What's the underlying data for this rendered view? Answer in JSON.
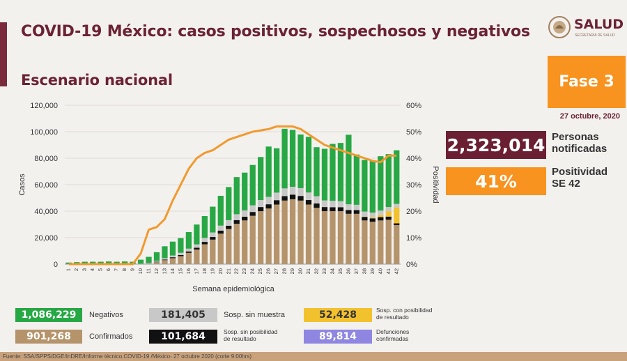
{
  "header": {
    "title": "COVID-19 México: casos positivos, sospechosos y negativos",
    "subtitle": "Escenario nacional",
    "logo_text": "SALUD",
    "logo_sub": "SECRETARÍA DE SALUD",
    "phase": "Fase 3",
    "date": "27 octubre, 2020"
  },
  "stats": {
    "notified_value": "2,323,014",
    "notified_label_1": "Personas",
    "notified_label_2": "notificadas",
    "positivity_value": "41%",
    "positivity_label_1": "Positividad",
    "positivity_label_2": "SE 42"
  },
  "legend": {
    "negativos_value": "1,086,229",
    "negativos_label": "Negativos",
    "sin_muestra_value": "181,405",
    "sin_muestra_label": "Sosp. sin muestra",
    "con_posibilidad_value": "52,428",
    "con_posibilidad_label_1": "Sosp. con posibilidad",
    "con_posibilidad_label_2": "de resultado",
    "confirmados_value": "901,268",
    "confirmados_label": "Confirmados",
    "sin_posibilidad_value": "101,684",
    "sin_posibilidad_label_1": "Sosp. sin posibilidad",
    "sin_posibilidad_label_2": "de resultado",
    "defunciones_value": "89,814",
    "defunciones_label_1": "Defunciones",
    "defunciones_label_2": "confirmadas"
  },
  "footer": "Fuente: SSA/SPPS/DGE/InDRE/Informe técnico.COVID-19 /México- 27 octubre 2020 (corte 9:00hrs)",
  "colors": {
    "confirmados": "#b5946b",
    "sin_posibilidad": "#111111",
    "sin_muestra": "#c8c8c8",
    "con_posibilidad": "#f2c12e",
    "negativos": "#27a844",
    "positividad": "#f2992e",
    "defunciones": "#8e86e0",
    "notified_box": "#6b1f32",
    "positivity_box": "#f7931e"
  },
  "chart_data": {
    "type": "bar",
    "stacked": true,
    "xlabel": "Semana epidemiológica",
    "ylabel": "Casos",
    "y2label": "Positividad",
    "ylim": [
      0,
      120000
    ],
    "yticks": [
      "0",
      "20,000",
      "40,000",
      "60,000",
      "80,000",
      "100,000",
      "120,000"
    ],
    "y2lim": [
      0,
      60
    ],
    "y2ticks": [
      "0%",
      "10%",
      "20%",
      "30%",
      "40%",
      "50%",
      "60%"
    ],
    "categories": [
      "1",
      "2",
      "3",
      "4",
      "5",
      "6",
      "7",
      "8",
      "9",
      "10",
      "11",
      "12",
      "13",
      "14",
      "15",
      "16",
      "17",
      "18",
      "19",
      "20",
      "21",
      "22",
      "23",
      "24",
      "25",
      "26",
      "27",
      "28",
      "29",
      "30",
      "31",
      "32",
      "33",
      "34",
      "35",
      "36",
      "37",
      "38",
      "39",
      "40",
      "41",
      "42"
    ],
    "series": [
      {
        "name": "Confirmados",
        "values": [
          0,
          0,
          0,
          0,
          0,
          0,
          0,
          0,
          0,
          100,
          500,
          1500,
          3000,
          4500,
          6000,
          8500,
          11000,
          15000,
          18500,
          23000,
          26500,
          30500,
          33000,
          36500,
          40000,
          42000,
          45000,
          48000,
          49000,
          48000,
          45000,
          42500,
          40000,
          40000,
          40000,
          38000,
          38000,
          33000,
          32000,
          33000,
          33500,
          29500
        ]
      },
      {
        "name": "Sosp. sin posibilidad de resultado",
        "values": [
          0,
          0,
          0,
          0,
          0,
          0,
          0,
          0,
          0,
          50,
          100,
          300,
          500,
          700,
          900,
          1100,
          1400,
          1800,
          2000,
          2300,
          2500,
          2700,
          2800,
          2900,
          3100,
          3200,
          3300,
          3400,
          3500,
          3500,
          3400,
          3300,
          3100,
          3000,
          3000,
          2900,
          2800,
          2700,
          2600,
          2500,
          2400,
          1300
        ]
      },
      {
        "name": "Sosp. con posibilidad de resultado",
        "values": [
          0,
          0,
          0,
          0,
          0,
          0,
          0,
          0,
          0,
          0,
          0,
          0,
          0,
          0,
          0,
          0,
          0,
          0,
          0,
          0,
          0,
          0,
          0,
          0,
          0,
          0,
          0,
          0,
          0,
          0,
          0,
          0,
          0,
          0,
          0,
          0,
          0,
          200,
          700,
          1500,
          4000,
          12000
        ]
      },
      {
        "name": "Sosp. sin muestra",
        "values": [
          0,
          0,
          0,
          0,
          0,
          0,
          0,
          0,
          0,
          200,
          400,
          700,
          1000,
          1300,
          1700,
          2100,
          2500,
          3000,
          3400,
          3800,
          4200,
          4500,
          4800,
          5000,
          5300,
          5600,
          5700,
          5800,
          5900,
          5900,
          5700,
          5500,
          5000,
          4800,
          4500,
          4300,
          4000,
          3800,
          3600,
          3500,
          3200,
          2700
        ]
      },
      {
        "name": "Negativos",
        "values": [
          1200,
          1500,
          1800,
          1800,
          1800,
          2000,
          1800,
          2000,
          1800,
          3000,
          4500,
          6500,
          9000,
          10500,
          11000,
          12500,
          15000,
          16500,
          19500,
          22500,
          25000,
          28000,
          28500,
          30500,
          32500,
          38000,
          33500,
          45000,
          43000,
          40500,
          42000,
          37000,
          39000,
          43000,
          44000,
          52500,
          38000,
          39000,
          39500,
          41000,
          40000,
          40500
        ]
      },
      {
        "name": "Positividad",
        "values": [
          0,
          0,
          0,
          0,
          0,
          0,
          0,
          0,
          0,
          4,
          13,
          14,
          17,
          24,
          30,
          36,
          40,
          42,
          43,
          45,
          47,
          48,
          49,
          50,
          50.5,
          51,
          52,
          52,
          52,
          51,
          49,
          47,
          45,
          44,
          43,
          42,
          41,
          40,
          39,
          38.5,
          41,
          41
        ]
      }
    ]
  }
}
